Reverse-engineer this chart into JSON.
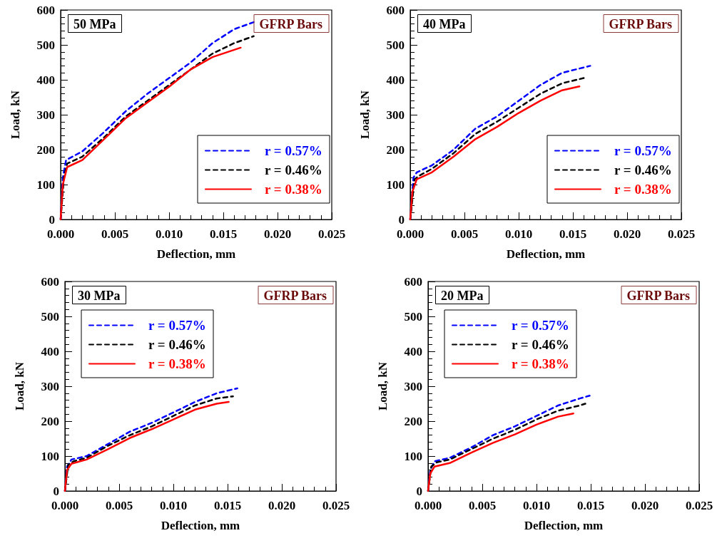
{
  "chart_data": [
    {
      "type": "line",
      "xlabel": "Deflection, mm",
      "ylabel": "Load, kN",
      "annotations": [
        "50 MPa",
        "GFRP Bars"
      ],
      "xlim": [
        0,
        0.025
      ],
      "xticks": [
        {
          "value": 0,
          "label": "0.000"
        },
        {
          "value": 0.005,
          "label": "0.005"
        },
        {
          "value": 0.01,
          "label": "0.010"
        },
        {
          "value": 0.015,
          "label": "0.015"
        },
        {
          "value": 0.02,
          "label": "0.020"
        },
        {
          "value": 0.025,
          "label": "0.025"
        }
      ],
      "ylim": [
        0,
        600
      ],
      "yticks": [
        0,
        100,
        200,
        300,
        400,
        500,
        600
      ],
      "grid": false,
      "legend": "bottom right",
      "marker": "none",
      "series": [
        {
          "name": "r = 0.57%",
          "color": "#0000ff",
          "line_style": "dashed",
          "x": [
            0,
            0.0002,
            0.0005,
            0.002,
            0.004,
            0.006,
            0.008,
            0.01,
            0.012,
            0.014,
            0.016,
            0.0178
          ],
          "values": [
            0,
            120,
            170,
            195,
            250,
            310,
            360,
            405,
            450,
            505,
            545,
            565
          ]
        },
        {
          "name": "r = 0.46%",
          "color": "#000000",
          "line_style": "dashed",
          "x": [
            0,
            0.0003,
            0.0006,
            0.002,
            0.004,
            0.006,
            0.008,
            0.01,
            0.012,
            0.014,
            0.016,
            0.0178
          ],
          "values": [
            0,
            120,
            160,
            180,
            235,
            295,
            340,
            385,
            430,
            475,
            505,
            525
          ]
        },
        {
          "name": "r = 0.38%",
          "color": "#ff0000",
          "line_style": "solid",
          "x": [
            0,
            0.0002,
            0.0006,
            0.002,
            0.004,
            0.006,
            0.008,
            0.01,
            0.012,
            0.014,
            0.0166
          ],
          "values": [
            0,
            100,
            150,
            170,
            230,
            290,
            335,
            380,
            430,
            465,
            492
          ]
        }
      ]
    },
    {
      "type": "line",
      "xlabel": "Deflection, mm",
      "ylabel": "Load, kN",
      "annotations": [
        "40 MPa",
        "GFRP Bars"
      ],
      "xlim": [
        0,
        0.025
      ],
      "xticks": [
        {
          "value": 0,
          "label": "0.000"
        },
        {
          "value": 0.005,
          "label": "0.005"
        },
        {
          "value": 0.01,
          "label": "0.010"
        },
        {
          "value": 0.015,
          "label": "0.015"
        },
        {
          "value": 0.02,
          "label": "0.020"
        },
        {
          "value": 0.025,
          "label": "0.025"
        }
      ],
      "ylim": [
        0,
        600
      ],
      "yticks": [
        0,
        100,
        200,
        300,
        400,
        500,
        600
      ],
      "grid": false,
      "legend": "bottom right",
      "marker": "none",
      "series": [
        {
          "name": "r = 0.57%",
          "color": "#0000ff",
          "line_style": "dashed",
          "x": [
            0,
            0.0003,
            0.0006,
            0.002,
            0.004,
            0.006,
            0.008,
            0.01,
            0.012,
            0.014,
            0.0166
          ],
          "values": [
            0,
            120,
            135,
            155,
            200,
            260,
            295,
            340,
            385,
            420,
            440
          ]
        },
        {
          "name": "r = 0.46%",
          "color": "#000000",
          "line_style": "dashed",
          "x": [
            0,
            0.0004,
            0.0008,
            0.002,
            0.004,
            0.006,
            0.008,
            0.01,
            0.012,
            0.014,
            0.016
          ],
          "values": [
            0,
            115,
            125,
            145,
            190,
            245,
            280,
            320,
            360,
            390,
            405
          ]
        },
        {
          "name": "r = 0.38%",
          "color": "#ff0000",
          "line_style": "solid",
          "x": [
            0,
            0.0002,
            0.0006,
            0.002,
            0.004,
            0.006,
            0.008,
            0.01,
            0.012,
            0.014,
            0.0156
          ],
          "values": [
            0,
            80,
            115,
            135,
            180,
            230,
            265,
            305,
            340,
            370,
            381
          ]
        }
      ]
    },
    {
      "type": "line",
      "xlabel": "Deflection, mm",
      "ylabel": "Load, kN",
      "annotations": [
        "30 MPa",
        "GFRP Bars"
      ],
      "xlim": [
        0,
        0.025
      ],
      "xticks": [
        {
          "value": 0,
          "label": "0.000"
        },
        {
          "value": 0.005,
          "label": "0.005"
        },
        {
          "value": 0.01,
          "label": "0.010"
        },
        {
          "value": 0.015,
          "label": "0.015"
        },
        {
          "value": 0.02,
          "label": "0.020"
        },
        {
          "value": 0.025,
          "label": "0.025"
        }
      ],
      "ylim": [
        0,
        600
      ],
      "yticks": [
        0,
        100,
        200,
        300,
        400,
        500,
        600
      ],
      "grid": false,
      "legend": "top left",
      "marker": "none",
      "series": [
        {
          "name": "r = 0.57%",
          "color": "#0000ff",
          "line_style": "dashed",
          "x": [
            0,
            0.0002,
            0.0006,
            0.002,
            0.004,
            0.006,
            0.008,
            0.01,
            0.012,
            0.014,
            0.0159
          ],
          "values": [
            0,
            70,
            90,
            100,
            135,
            170,
            195,
            225,
            255,
            280,
            294
          ]
        },
        {
          "name": "r = 0.46%",
          "color": "#000000",
          "line_style": "dashed",
          "x": [
            0,
            0.0003,
            0.0008,
            0.002,
            0.004,
            0.006,
            0.008,
            0.01,
            0.012,
            0.014,
            0.0155
          ],
          "values": [
            0,
            75,
            85,
            95,
            130,
            160,
            185,
            215,
            245,
            265,
            271
          ]
        },
        {
          "name": "r = 0.38%",
          "color": "#ff0000",
          "line_style": "solid",
          "x": [
            0,
            0.0002,
            0.0006,
            0.002,
            0.004,
            0.006,
            0.008,
            0.01,
            0.012,
            0.014,
            0.0151
          ],
          "values": [
            0,
            60,
            78,
            90,
            120,
            152,
            177,
            205,
            233,
            250,
            255
          ]
        }
      ]
    },
    {
      "type": "line",
      "xlabel": "Deflection, mm",
      "ylabel": "Load, kN",
      "annotations": [
        "20 MPa",
        "GFRP Bars"
      ],
      "xlim": [
        0,
        0.025
      ],
      "xticks": [
        {
          "value": 0,
          "label": "0.000"
        },
        {
          "value": 0.005,
          "label": "0.005"
        },
        {
          "value": 0.01,
          "label": "0.010"
        },
        {
          "value": 0.015,
          "label": "0.015"
        },
        {
          "value": 0.02,
          "label": "0.020"
        },
        {
          "value": 0.025,
          "label": "0.025"
        }
      ],
      "ylim": [
        0,
        600
      ],
      "yticks": [
        0,
        100,
        200,
        300,
        400,
        500,
        600
      ],
      "grid": false,
      "legend": "top left",
      "marker": "none",
      "series": [
        {
          "name": "r = 0.57%",
          "color": "#0000ff",
          "line_style": "dashed",
          "x": [
            0,
            0.0002,
            0.0006,
            0.002,
            0.004,
            0.006,
            0.008,
            0.01,
            0.012,
            0.014,
            0.0149
          ],
          "values": [
            0,
            60,
            85,
            95,
            125,
            160,
            185,
            215,
            245,
            265,
            273
          ]
        },
        {
          "name": "r = 0.46%",
          "color": "#000000",
          "line_style": "dashed",
          "x": [
            0,
            0.0003,
            0.0008,
            0.002,
            0.004,
            0.006,
            0.008,
            0.01,
            0.012,
            0.014,
            0.0145
          ],
          "values": [
            0,
            70,
            82,
            90,
            120,
            150,
            175,
            205,
            230,
            245,
            250
          ]
        },
        {
          "name": "r = 0.38%",
          "color": "#ff0000",
          "line_style": "solid",
          "x": [
            0,
            0.0002,
            0.0006,
            0.002,
            0.004,
            0.006,
            0.008,
            0.01,
            0.012,
            0.0134
          ],
          "values": [
            0,
            50,
            70,
            80,
            110,
            138,
            162,
            190,
            213,
            222
          ]
        }
      ]
    }
  ]
}
